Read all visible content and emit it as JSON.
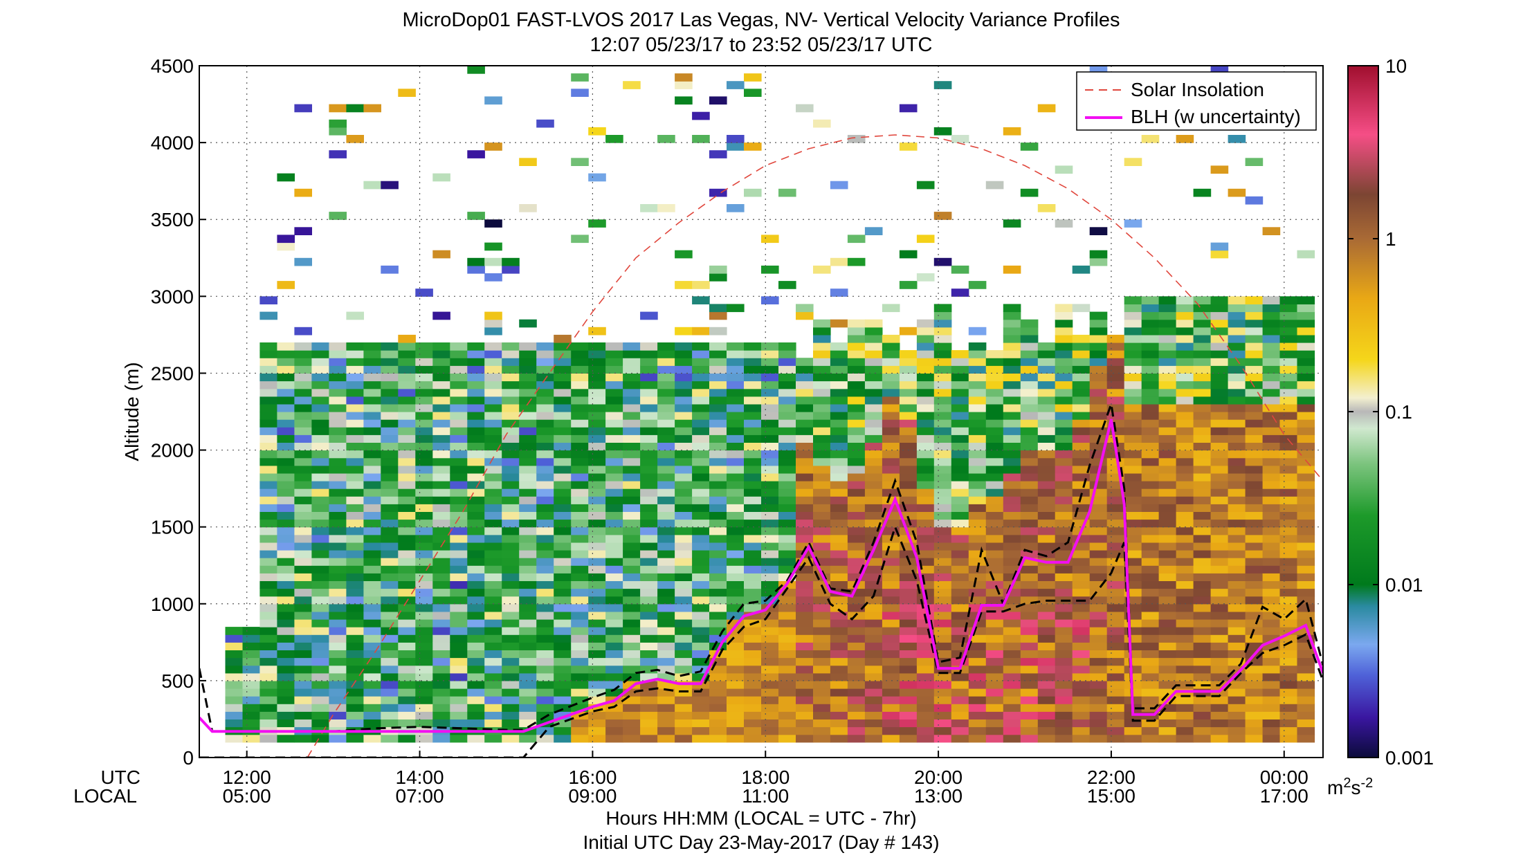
{
  "figure": {
    "title_line1": "MicroDop01 FAST-LVOS 2017 Las Vegas, NV- Vertical Velocity Variance Profiles",
    "title_line2": "12:07 05/23/17 to 23:52 05/23/17  UTC",
    "xlabel": "Hours HH:MM  (LOCAL = UTC - 7hr)",
    "footer": "Initial UTC Day 23-May-2017 (Day # 143)",
    "row_label_utc": "UTC",
    "row_label_local": "LOCAL"
  },
  "chart_data": {
    "type": "heatmap",
    "title": "MicroDop01 FAST-LVOS 2017 Las Vegas, NV- Vertical Velocity Variance Profiles",
    "ylabel": "Altitude (m)",
    "xlim_utc_hours": [
      11.45,
      24.45
    ],
    "ylim": [
      0,
      4500
    ],
    "x_ticks_utc": [
      "12:00",
      "14:00",
      "16:00",
      "18:00",
      "20:00",
      "22:00",
      "00:00"
    ],
    "x_ticks_local": [
      "05:00",
      "07:00",
      "09:00",
      "11:00",
      "13:00",
      "15:00",
      "17:00"
    ],
    "x_tick_hours": [
      12,
      14,
      16,
      18,
      20,
      22,
      24
    ],
    "y_ticks": [
      0,
      500,
      1000,
      1500,
      2000,
      2500,
      3000,
      3500,
      4000,
      4500
    ],
    "grid": true,
    "colorbar": {
      "scale": "log",
      "range": [
        0.001,
        10
      ],
      "ticks": [
        10,
        1,
        0.1,
        0.01,
        0.001
      ],
      "tick_labels": [
        "10",
        "1",
        "0.1",
        "0.01",
        "0.001"
      ],
      "unit": "m2s-2",
      "stops": [
        {
          "v": 0.001,
          "c": "#0b0b3a"
        },
        {
          "v": 0.0017,
          "c": "#3a16a0"
        },
        {
          "v": 0.003,
          "c": "#4f62d8"
        },
        {
          "v": 0.0045,
          "c": "#7ba8ef"
        },
        {
          "v": 0.0075,
          "c": "#2a8aa0"
        },
        {
          "v": 0.01,
          "c": "#007a1c"
        },
        {
          "v": 0.025,
          "c": "#1d9a2a"
        },
        {
          "v": 0.05,
          "c": "#7cc47e"
        },
        {
          "v": 0.08,
          "c": "#d0e8cf"
        },
        {
          "v": 0.1,
          "c": "#b8b8b8"
        },
        {
          "v": 0.12,
          "c": "#f3efcf"
        },
        {
          "v": 0.2,
          "c": "#f5d61a"
        },
        {
          "v": 0.45,
          "c": "#e9a815"
        },
        {
          "v": 1,
          "c": "#a96a35"
        },
        {
          "v": 1.8,
          "c": "#7c4533"
        },
        {
          "v": 4,
          "c": "#f54e86"
        },
        {
          "v": 10,
          "c": "#a00f2e"
        }
      ]
    },
    "legend": {
      "placement": "top-right",
      "entries": [
        {
          "label": "Solar Insolation",
          "color": "#e0463c",
          "style": "dashed"
        },
        {
          "label": "BLH (w uncertainty)",
          "color": "#f20ff2",
          "style": "solid"
        }
      ]
    },
    "series": [
      {
        "name": "BLH (w uncertainty)",
        "t": [
          11.45,
          11.6,
          12.0,
          12.5,
          13.0,
          13.5,
          14.0,
          14.5,
          15.0,
          15.2,
          15.5,
          16.0,
          16.25,
          16.5,
          16.75,
          17.0,
          17.25,
          17.5,
          17.75,
          18.0,
          18.25,
          18.5,
          18.75,
          19.0,
          19.25,
          19.5,
          19.75,
          20.0,
          20.25,
          20.5,
          20.75,
          21.0,
          21.25,
          21.5,
          21.75,
          22.0,
          22.15,
          22.25,
          22.5,
          22.75,
          23.0,
          23.25,
          23.5,
          23.75,
          24.0,
          24.25,
          24.45
        ],
        "alt": [
          260,
          170,
          170,
          170,
          170,
          170,
          170,
          170,
          170,
          170,
          230,
          330,
          370,
          480,
          510,
          480,
          480,
          750,
          920,
          960,
          1130,
          1370,
          1080,
          1050,
          1350,
          1680,
          1300,
          580,
          580,
          990,
          990,
          1300,
          1270,
          1270,
          1600,
          2200,
          1650,
          280,
          280,
          430,
          430,
          430,
          570,
          730,
          790,
          860,
          550
        ]
      },
      {
        "name": "BLH upper",
        "t": [
          11.45,
          11.6,
          12.0,
          12.5,
          13.0,
          13.5,
          14.0,
          14.5,
          15.0,
          15.2,
          15.5,
          16.0,
          16.25,
          16.5,
          16.75,
          17.0,
          17.25,
          17.5,
          17.75,
          18.0,
          18.25,
          18.5,
          18.75,
          19.0,
          19.25,
          19.5,
          19.75,
          20.0,
          20.25,
          20.5,
          20.75,
          21.0,
          21.25,
          21.5,
          21.75,
          22.0,
          22.15,
          22.25,
          22.5,
          22.75,
          23.0,
          23.25,
          23.5,
          23.75,
          24.0,
          24.25,
          24.45
        ],
        "alt": [
          580,
          170,
          170,
          170,
          170,
          190,
          200,
          190,
          180,
          180,
          280,
          390,
          440,
          550,
          570,
          530,
          560,
          820,
          1000,
          1020,
          1150,
          1400,
          1100,
          1080,
          1400,
          1800,
          1400,
          620,
          650,
          1350,
          1000,
          1350,
          1310,
          1400,
          1900,
          2300,
          1750,
          320,
          320,
          470,
          470,
          470,
          610,
          980,
          900,
          1030,
          600
        ]
      },
      {
        "name": "BLH lower",
        "t": [
          11.45,
          11.6,
          12.0,
          12.5,
          13.0,
          13.5,
          14.0,
          14.5,
          15.0,
          15.2,
          15.5,
          16.0,
          16.25,
          16.5,
          16.75,
          17.0,
          17.25,
          17.5,
          17.75,
          18.0,
          18.25,
          18.5,
          18.75,
          19.0,
          19.25,
          19.5,
          19.75,
          20.0,
          20.25,
          20.5,
          20.75,
          21.0,
          21.25,
          21.5,
          21.75,
          22.0,
          22.15,
          22.25,
          22.5,
          22.75,
          23.0,
          23.25,
          23.5,
          23.75,
          24.0,
          24.25,
          24.45
        ],
        "alt": [
          0,
          0,
          0,
          0,
          0,
          0,
          0,
          0,
          0,
          0,
          200,
          300,
          330,
          430,
          450,
          430,
          430,
          700,
          850,
          900,
          1100,
          1300,
          1000,
          900,
          1050,
          1500,
          1150,
          550,
          550,
          950,
          950,
          1000,
          1020,
          1020,
          1020,
          1200,
          1400,
          240,
          240,
          400,
          400,
          400,
          550,
          680,
          730,
          800,
          500
        ]
      },
      {
        "name": "Solar Insolation",
        "t": [
          12.7,
          13.0,
          13.5,
          14.0,
          14.5,
          15.0,
          15.5,
          16.0,
          16.5,
          17.0,
          17.5,
          18.0,
          18.5,
          19.0,
          19.5,
          20.0,
          20.5,
          21.0,
          21.5,
          22.0,
          22.5,
          23.0,
          23.5,
          24.0,
          24.45
        ],
        "alt": [
          0,
          280,
          700,
          1150,
          1600,
          2100,
          2500,
          2900,
          3250,
          3480,
          3680,
          3850,
          3960,
          4030,
          4050,
          4030,
          3960,
          3850,
          3700,
          3500,
          3250,
          2950,
          2550,
          2100,
          1800
        ]
      }
    ]
  }
}
